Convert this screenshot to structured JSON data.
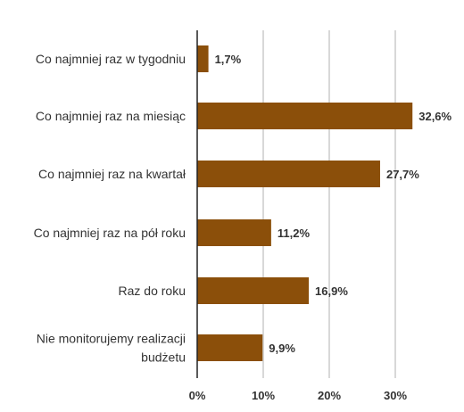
{
  "chart_data": {
    "type": "bar",
    "orientation": "horizontal",
    "categories": [
      [
        "Co najmniej raz w tygodniu"
      ],
      [
        "Co najmniej raz na miesiąc"
      ],
      [
        "Co najmniej raz na kwartał"
      ],
      [
        "Co najmniej raz na pół roku"
      ],
      [
        "Raz do roku"
      ],
      [
        "Nie monitorujemy realizacji",
        "budżetu"
      ]
    ],
    "values": [
      1.7,
      32.6,
      27.7,
      11.2,
      16.9,
      9.9
    ],
    "value_labels": [
      "1,7%",
      "32,6%",
      "27,7%",
      "11,2%",
      "16,9%",
      "9,9%"
    ],
    "x_ticks": [
      0,
      10,
      20,
      30
    ],
    "x_tick_labels": [
      "0%",
      "10%",
      "20%",
      "30%"
    ],
    "xlim": [
      0,
      40
    ],
    "grid": true,
    "bar_color": "#8B4F0A",
    "title": "",
    "xlabel": "",
    "ylabel": ""
  }
}
